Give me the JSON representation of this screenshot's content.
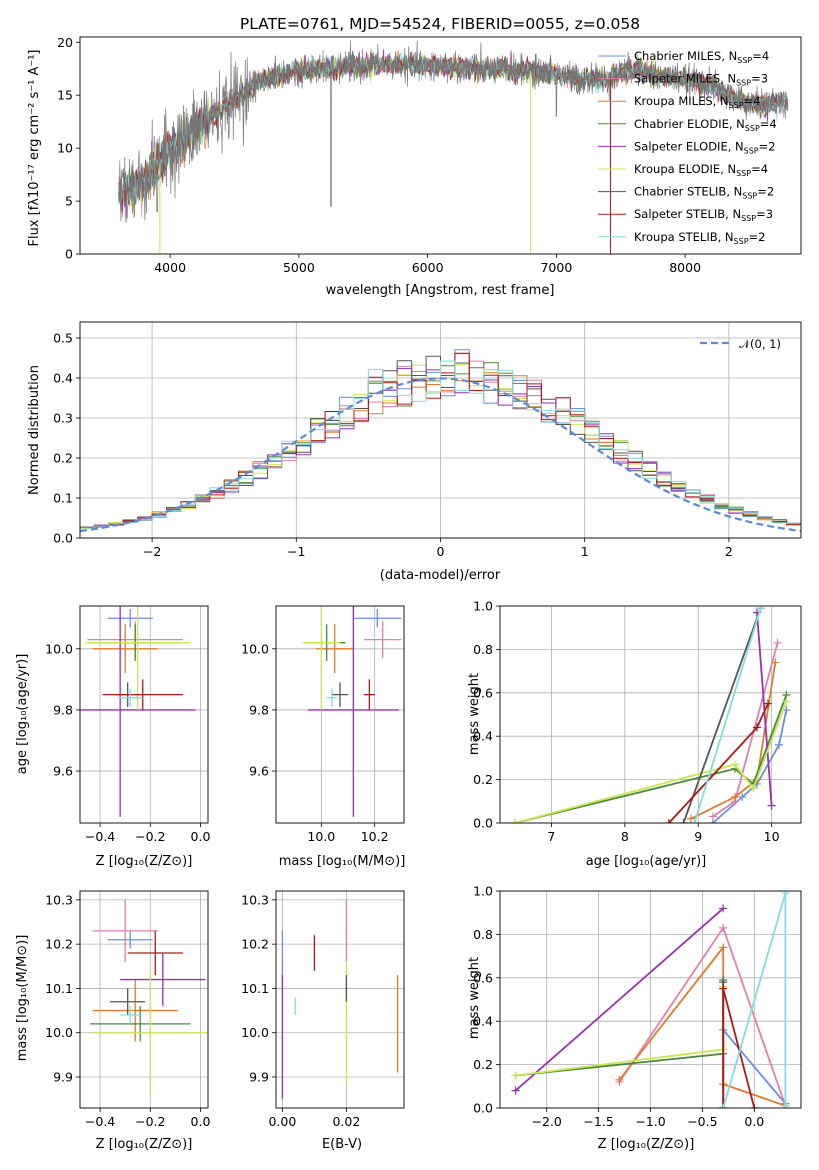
{
  "page": {
    "title": "PLATE=0761, MJD=54524, FIBERID=0055, z=0.058"
  },
  "colors": {
    "chabrier_miles": "#6a8fdc",
    "salpeter_miles": "#e07fb0",
    "kroupa_miles": "#e07b2a",
    "chabrier_elodie": "#4a8a3a",
    "salpeter_elodie": "#9a2fb0",
    "kroupa_elodie": "#c8e850",
    "chabrier_stelib": "#555555",
    "salpeter_stelib": "#b01818",
    "kroupa_stelib": "#80dede",
    "normal": "#5b8bd8"
  },
  "chart_data": [
    {
      "id": "spectrum",
      "type": "line",
      "xlabel": "wavelength [Angstrom, rest frame]",
      "ylabel": "Flux [fλ10⁻¹⁷ erg cm⁻² s⁻¹ A⁻¹]",
      "xlim": [
        3300,
        8900
      ],
      "ylim": [
        0,
        20.5
      ],
      "xticks": [
        "4000",
        "5000",
        "6000",
        "7000",
        "8000"
      ],
      "yticks": [
        "0",
        "5",
        "10",
        "15",
        "20"
      ],
      "grid": false,
      "legend_position": "upper-right",
      "legend": [
        "Chabrier MILES, N_SSP=4",
        "Salpeter MILES, N_SSP=3",
        "Kroupa MILES, N_SSP=4",
        "Chabrier ELODIE, N_SSP=4",
        "Salpeter ELODIE, N_SSP=2",
        "Kroupa ELODIE, N_SSP=4",
        "Chabrier STELIB, N_SSP=2",
        "Salpeter STELIB, N_SSP=3",
        "Kroupa STELIB, N_SSP=2"
      ],
      "continuum": {
        "x": [
          3600,
          3700,
          3800,
          3900,
          4000,
          4100,
          4200,
          4300,
          4400,
          4500,
          4600,
          4700,
          4800,
          5000,
          5200,
          5400,
          5600,
          5800,
          6000,
          6200,
          6400,
          6600,
          6800,
          7000,
          7200,
          7400,
          7600,
          7800,
          8000,
          8200,
          8400,
          8600,
          8800
        ],
        "y": [
          6.0,
          6.2,
          7.0,
          8.3,
          9.8,
          10.7,
          11.8,
          12.8,
          13.7,
          14.6,
          15.5,
          16.3,
          16.8,
          17.3,
          17.5,
          17.7,
          17.9,
          17.9,
          17.8,
          17.7,
          17.5,
          17.4,
          17.3,
          17.0,
          16.5,
          16.6,
          17.5,
          16.8,
          16.5,
          16.0,
          14.5,
          14.0,
          14.5
        ]
      }
    },
    {
      "id": "residuals",
      "type": "line",
      "xlabel": "(data-model)/error",
      "ylabel": "Normed distribution",
      "xlim": [
        -2.5,
        2.5
      ],
      "ylim": [
        0,
        0.54
      ],
      "xticks": [
        "−2",
        "−1",
        "0",
        "1",
        "2"
      ],
      "yticks": [
        "0.0",
        "0.1",
        "0.2",
        "0.3",
        "0.4",
        "0.5"
      ],
      "grid": true,
      "legend_position": "upper-right",
      "legend": [
        "𝒩(0, 1)"
      ],
      "bins": {
        "start": -2.5,
        "width": 0.1,
        "count": 50
      }
    },
    {
      "id": "age_vs_Z",
      "type": "scatter",
      "xlabel": "Z [log₁₀(Z/Z⊙)]",
      "ylabel": "age  [log₁₀(age/yr)]",
      "xlim": [
        -0.48,
        0.03
      ],
      "ylim": [
        9.43,
        10.14
      ],
      "xticks": [
        "−0.4",
        "−0.2",
        "0.0"
      ],
      "yticks": [
        "9.6",
        "9.8",
        "10.0"
      ],
      "grid": true,
      "points": [
        {
          "x": -0.28,
          "y": 10.1,
          "xe": 0.09,
          "ye": 0.03
        },
        {
          "x": -0.26,
          "y": 10.03,
          "xe": 0.19,
          "ye": 0.06
        },
        {
          "x": -0.3,
          "y": 10.0,
          "xe": 0.13,
          "ye": 0.08
        },
        {
          "x": -0.26,
          "y": 10.02,
          "xe": 0.17,
          "ye": 0.06
        },
        {
          "x": -0.32,
          "y": 9.8,
          "xe": 0.3,
          "ye": 0.35
        },
        {
          "x": -0.25,
          "y": 10.02,
          "xe": 0.21,
          "ye": 0.22
        },
        {
          "x": -0.29,
          "y": 9.85,
          "xe": 0.05,
          "ye": 0.04
        },
        {
          "x": -0.23,
          "y": 9.85,
          "xe": 0.16,
          "ye": 0.05
        },
        {
          "x": -0.28,
          "y": 9.84,
          "xe": 0.05,
          "ye": 0.03
        }
      ]
    },
    {
      "id": "age_vs_mass",
      "type": "scatter",
      "xlabel": "mass [log₁₀(M/M⊙)]",
      "ylabel": "",
      "xlim": [
        9.83,
        10.31
      ],
      "ylim": [
        9.43,
        10.14
      ],
      "xticks": [
        "10.0",
        "10.2"
      ],
      "yticks": [
        "9.6",
        "9.8",
        "10.0"
      ],
      "grid": true,
      "points": [
        {
          "x": 10.21,
          "y": 10.1,
          "xe": 0.09,
          "ye": 0.03
        },
        {
          "x": 10.23,
          "y": 10.03,
          "xe": 0.07,
          "ye": 0.06
        },
        {
          "x": 10.05,
          "y": 10.0,
          "xe": 0.07,
          "ye": 0.08
        },
        {
          "x": 10.02,
          "y": 10.02,
          "xe": 0.07,
          "ye": 0.06
        },
        {
          "x": 10.12,
          "y": 9.8,
          "xe": 0.17,
          "ye": 0.35
        },
        {
          "x": 10.0,
          "y": 10.02,
          "xe": 0.07,
          "ye": 0.22
        },
        {
          "x": 10.07,
          "y": 9.85,
          "xe": 0.03,
          "ye": 0.04
        },
        {
          "x": 10.18,
          "y": 9.85,
          "xe": 0.02,
          "ye": 0.05
        },
        {
          "x": 10.04,
          "y": 9.84,
          "xe": 0.02,
          "ye": 0.03
        }
      ]
    },
    {
      "id": "mass_weight_vs_age",
      "type": "line",
      "xlabel": "age  [log₁₀(age/yr)]",
      "ylabel": "mass weight",
      "xlim": [
        6.3,
        10.4
      ],
      "ylim": [
        0,
        1
      ],
      "xticks": [
        "7",
        "8",
        "9",
        "10"
      ],
      "yticks": [
        "0.0",
        "0.2",
        "0.4",
        "0.6",
        "0.8",
        "1.0"
      ],
      "grid": true,
      "series": [
        {
          "color_key": "chabrier_miles",
          "x": [
            9.2,
            9.6,
            9.8,
            10.1,
            10.2
          ],
          "y": [
            0.0,
            0.12,
            0.18,
            0.36,
            0.52
          ]
        },
        {
          "color_key": "salpeter_miles",
          "x": [
            9.2,
            9.5,
            10.08
          ],
          "y": [
            0.03,
            0.1,
            0.83
          ]
        },
        {
          "color_key": "kroupa_miles",
          "x": [
            8.9,
            9.5,
            9.8,
            10.05
          ],
          "y": [
            0.02,
            0.12,
            0.2,
            0.74
          ]
        },
        {
          "color_key": "chabrier_elodie",
          "x": [
            6.5,
            9.5,
            9.75,
            10.2
          ],
          "y": [
            0.0,
            0.25,
            0.18,
            0.59
          ]
        },
        {
          "color_key": "salpeter_elodie",
          "x": [
            9.8,
            10.0
          ],
          "y": [
            0.97,
            0.08
          ]
        },
        {
          "color_key": "kroupa_elodie",
          "x": [
            6.5,
            9.5,
            9.75,
            10.2
          ],
          "y": [
            0.0,
            0.27,
            0.16,
            0.56
          ]
        },
        {
          "color_key": "chabrier_stelib",
          "x": [
            8.8,
            9.85
          ],
          "y": [
            0.0,
            0.99
          ]
        },
        {
          "color_key": "salpeter_stelib",
          "x": [
            8.6,
            9.8,
            9.95
          ],
          "y": [
            0.0,
            0.44,
            0.55
          ]
        },
        {
          "color_key": "kroupa_stelib",
          "x": [
            8.95,
            9.85
          ],
          "y": [
            0.0,
            0.99
          ]
        }
      ]
    },
    {
      "id": "mass_vs_Z",
      "type": "scatter",
      "xlabel": "Z [log₁₀(Z/Z⊙)]",
      "ylabel": "mass [log₁₀(M/M⊙)]",
      "xlim": [
        -0.48,
        0.03
      ],
      "ylim": [
        9.83,
        10.32
      ],
      "xticks": [
        "−0.4",
        "−0.2",
        "0.0"
      ],
      "yticks": [
        "9.9",
        "10.0",
        "10.1",
        "10.2",
        "10.3"
      ],
      "grid": true,
      "points": [
        {
          "x": -0.28,
          "y": 10.21,
          "xe": 0.09,
          "ye": 0.02
        },
        {
          "x": -0.3,
          "y": 10.23,
          "xe": 0.13,
          "ye": 0.07
        },
        {
          "x": -0.26,
          "y": 10.05,
          "xe": 0.17,
          "ye": 0.07
        },
        {
          "x": -0.24,
          "y": 10.02,
          "xe": 0.2,
          "ye": 0.04
        },
        {
          "x": -0.15,
          "y": 10.12,
          "xe": 0.17,
          "ye": 0.06
        },
        {
          "x": -0.2,
          "y": 10.0,
          "xe": 0.23,
          "ye": 0.14
        },
        {
          "x": -0.29,
          "y": 10.07,
          "xe": 0.07,
          "ye": 0.03
        },
        {
          "x": -0.18,
          "y": 10.18,
          "xe": 0.11,
          "ye": 0.05
        },
        {
          "x": -0.28,
          "y": 10.04,
          "xe": 0.04,
          "ye": 0.02
        }
      ]
    },
    {
      "id": "mass_vs_ebv",
      "type": "scatter",
      "xlabel": "E(B-V)",
      "ylabel": "",
      "xlim": [
        -0.002,
        0.038
      ],
      "ylim": [
        9.83,
        10.32
      ],
      "xticks": [
        "0.00",
        "0.02"
      ],
      "yticks": [
        "9.9",
        "10.0",
        "10.1",
        "10.2",
        "10.3"
      ],
      "grid": true,
      "points": [
        {
          "x": 0.0,
          "y": 10.16,
          "xe": 0,
          "ye": 0.07
        },
        {
          "x": 0.02,
          "y": 10.23,
          "xe": 0,
          "ye": 0.07
        },
        {
          "x": 0.036,
          "y": 10.02,
          "xe": 0,
          "ye": 0.11
        },
        {
          "x": 0.02,
          "y": 10.1,
          "xe": 0,
          "ye": 0.02
        },
        {
          "x": 0.0,
          "y": 9.99,
          "xe": 0,
          "ye": 0.14
        },
        {
          "x": 0.02,
          "y": 10.02,
          "xe": 0,
          "ye": 0.14
        },
        {
          "x": 0.02,
          "y": 10.1,
          "xe": 0,
          "ye": 0.03
        },
        {
          "x": 0.01,
          "y": 10.18,
          "xe": 0,
          "ye": 0.04
        },
        {
          "x": 0.004,
          "y": 10.06,
          "xe": 0,
          "ye": 0.02
        }
      ]
    },
    {
      "id": "mass_weight_vs_Z",
      "type": "line",
      "xlabel": "Z [log₁₀(Z/Z⊙)]",
      "ylabel": "mass weight",
      "xlim": [
        -2.45,
        0.45
      ],
      "ylim": [
        0,
        1
      ],
      "xticks": [
        "−2.0",
        "−1.5",
        "−1.0",
        "−0.5",
        "0.0"
      ],
      "yticks": [
        "0.0",
        "0.2",
        "0.4",
        "0.6",
        "0.8",
        "1.0"
      ],
      "grid": true,
      "series": [
        {
          "color_key": "chabrier_miles",
          "x": [
            -0.3,
            -0.3,
            0.3
          ],
          "y": [
            0.0,
            0.36,
            0.02
          ]
        },
        {
          "color_key": "salpeter_miles",
          "x": [
            -1.3,
            -0.3,
            0.3
          ],
          "y": [
            0.12,
            0.83,
            0.01
          ]
        },
        {
          "color_key": "kroupa_miles",
          "x": [
            -1.3,
            -0.3,
            -0.3,
            0.3
          ],
          "y": [
            0.13,
            0.74,
            0.11,
            0.01
          ]
        },
        {
          "color_key": "chabrier_elodie",
          "x": [
            -2.3,
            -0.3,
            -0.3
          ],
          "y": [
            0.15,
            0.25,
            0.59
          ]
        },
        {
          "color_key": "salpeter_elodie",
          "x": [
            -2.3,
            -0.3
          ],
          "y": [
            0.08,
            0.92
          ]
        },
        {
          "color_key": "kroupa_elodie",
          "x": [
            -2.3,
            -0.3,
            -0.3
          ],
          "y": [
            0.15,
            0.27,
            0.56
          ]
        },
        {
          "color_key": "chabrier_stelib",
          "x": [
            -0.3,
            -0.3
          ],
          "y": [
            0.0,
            0.58
          ]
        },
        {
          "color_key": "salpeter_stelib",
          "x": [
            -0.3,
            -0.3,
            0.0
          ],
          "y": [
            0.0,
            0.55,
            0.0
          ]
        },
        {
          "color_key": "kroupa_stelib",
          "x": [
            -0.3,
            0.3,
            0.3
          ],
          "y": [
            0.0,
            0.99,
            0.01
          ]
        }
      ]
    }
  ]
}
